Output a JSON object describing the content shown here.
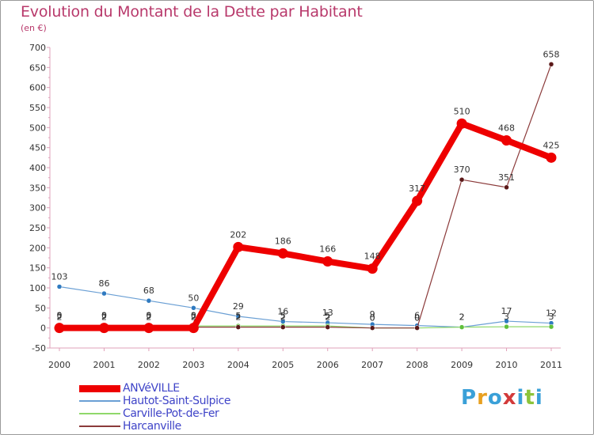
{
  "title": "Evolution du Montant de la Dette par Habitant",
  "unit": "(en €)",
  "logo": {
    "text": "Proxiti",
    "colors": [
      "#3aa0d8",
      "#e8a020",
      "#3aa0d8",
      "#d23a3a",
      "#3aa0d8",
      "#8cc43a",
      "#3aa0d8"
    ]
  },
  "chart_data": {
    "type": "line",
    "title": "Evolution du Montant de la Dette par Habitant",
    "xlabel": "",
    "ylabel": "(en €)",
    "x": [
      "2000",
      "2001",
      "2002",
      "2003",
      "2004",
      "2005",
      "2006",
      "2007",
      "2008",
      "2009",
      "2010",
      "2011"
    ],
    "ylim": [
      -50,
      700
    ],
    "yticks": [
      "-50",
      "0",
      "50",
      "100",
      "150",
      "200",
      "250",
      "300",
      "350",
      "400",
      "450",
      "500",
      "550",
      "600",
      "650",
      "700"
    ],
    "grid": false,
    "legend": "bottom-left",
    "series": [
      {
        "name": "ANVéVILLE",
        "color": "#ee0000",
        "marker": "#ee0000",
        "values": [
          0,
          0,
          0,
          0,
          202,
          186,
          166,
          148,
          317,
          510,
          468,
          425
        ],
        "labels": [
          "0",
          "0",
          "0",
          "0",
          "202",
          "186",
          "166",
          "148",
          "317",
          "510",
          "468",
          "425"
        ]
      },
      {
        "name": "Hautot-Saint-Sulpice",
        "color": "#6a9fd4",
        "marker": "#2f7ac0",
        "values": [
          103,
          86,
          68,
          50,
          29,
          16,
          13,
          9,
          6,
          2,
          17,
          12
        ],
        "labels": [
          "103",
          "86",
          "68",
          "50",
          "29",
          "16",
          "13",
          "9",
          "6",
          "2",
          "17",
          "12"
        ]
      },
      {
        "name": "Carville-Pot-de-Fer",
        "color": "#8fd86a",
        "marker": "#5fc03a",
        "values": [
          5,
          5,
          5,
          5,
          5,
          5,
          5,
          0,
          0,
          2,
          3,
          3
        ],
        "labels": [
          "5",
          "5",
          "5",
          "5",
          "5",
          "5",
          "5",
          "0",
          "0",
          "2",
          "3",
          "3"
        ]
      },
      {
        "name": "Harcanville",
        "color": "#8b3a3a",
        "marker": "#5a1818",
        "values": [
          2,
          2,
          2,
          2,
          2,
          2,
          2,
          0,
          0,
          370,
          351,
          658
        ],
        "labels": [
          "2",
          "2",
          "2",
          "2",
          "2",
          "2",
          "2",
          "0",
          "0",
          "370",
          "351",
          "658"
        ]
      }
    ]
  }
}
